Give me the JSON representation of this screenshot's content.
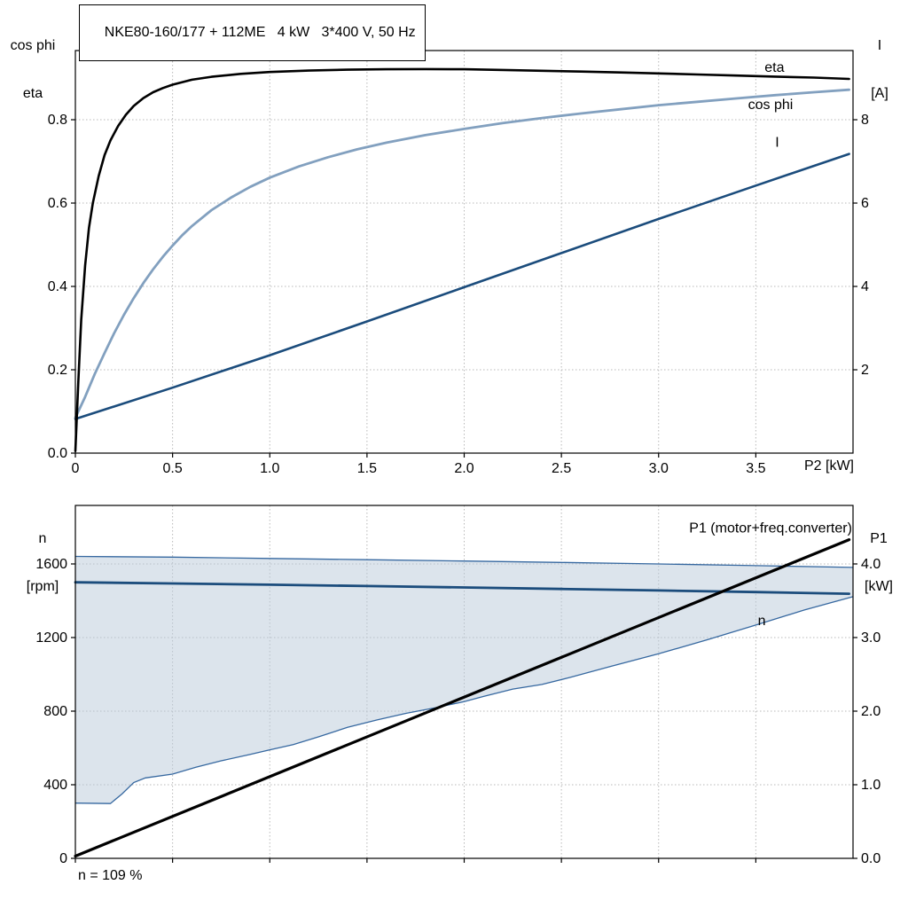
{
  "title": "NKE80-160/177 + 112ME   4 kW   3*400 V, 50 Hz",
  "labels": {
    "top_left_line1": "cos phi",
    "top_left_line2": "eta",
    "top_right_line1": "I",
    "top_right_line2": "[A]",
    "x_axis": "P2 [kW]",
    "bottom_left_line1": "n",
    "bottom_left_line2": "[rpm]",
    "bottom_right_line1": "P1",
    "bottom_right_line2": "[kW]",
    "annotation": "n = 109 %"
  },
  "colors": {
    "eta": "#000000",
    "cos_phi": "#82a0bf",
    "current": "#1b4c7c",
    "speed": "#1b4c7c",
    "p1": "#000000",
    "band_fill": "#b9cada",
    "band_edge": "#3668a0",
    "grid": "#b8b8b8"
  },
  "chart_data": [
    {
      "type": "line",
      "title": "NKE80-160/177 + 112ME   4 kW   3*400 V, 50 Hz",
      "xlabel": "P2 [kW]",
      "ylabel_left": "cos phi / eta",
      "ylabel_right": "I [A]",
      "xlim": [
        0,
        4
      ],
      "ylim_left": [
        0,
        0.966
      ],
      "ylim_right": [
        0,
        9.66
      ],
      "grid": true,
      "x_ticks": [
        {
          "v": 0,
          "label": "0"
        },
        {
          "v": 0.5,
          "label": "0.5"
        },
        {
          "v": 1,
          "label": "1.0"
        },
        {
          "v": 1.5,
          "label": "1.5"
        },
        {
          "v": 2,
          "label": "2.0"
        },
        {
          "v": 2.5,
          "label": "2.5"
        },
        {
          "v": 3,
          "label": "3.0"
        },
        {
          "v": 3.5,
          "label": "3.5"
        }
      ],
      "yl_ticks": [
        {
          "v": 0,
          "label": "0.0"
        },
        {
          "v": 0.2,
          "label": "0.2"
        },
        {
          "v": 0.4,
          "label": "0.4"
        },
        {
          "v": 0.6,
          "label": "0.6"
        },
        {
          "v": 0.8,
          "label": "0.8"
        }
      ],
      "yr_ticks": [
        {
          "v": 2,
          "label": "2"
        },
        {
          "v": 4,
          "label": "4"
        },
        {
          "v": 6,
          "label": "6"
        },
        {
          "v": 8,
          "label": "8"
        }
      ],
      "series": [
        {
          "id": "current-curve",
          "name": "I",
          "axis": "right",
          "color": "#1b4c7c",
          "width": 2.6,
          "points": [
            [
              0,
              0.82
            ],
            [
              0.5,
              1.57
            ],
            [
              1.0,
              2.35
            ],
            [
              1.5,
              3.16
            ],
            [
              2.0,
              3.98
            ],
            [
              2.5,
              4.8
            ],
            [
              3.0,
              5.62
            ],
            [
              3.5,
              6.42
            ],
            [
              3.98,
              7.18
            ]
          ],
          "label_at": {
            "x": 3.6,
            "y": 7.46,
            "anchor": "start",
            "color": "#1b4c7c"
          }
        },
        {
          "id": "cos-phi-curve",
          "name": "cos phi",
          "axis": "left",
          "color": "#82a0bf",
          "width": 2.8,
          "points": [
            [
              0,
              0.085
            ],
            [
              0.05,
              0.135
            ],
            [
              0.1,
              0.19
            ],
            [
              0.15,
              0.24
            ],
            [
              0.2,
              0.288
            ],
            [
              0.25,
              0.332
            ],
            [
              0.3,
              0.372
            ],
            [
              0.35,
              0.408
            ],
            [
              0.4,
              0.441
            ],
            [
              0.45,
              0.471
            ],
            [
              0.5,
              0.498
            ],
            [
              0.55,
              0.523
            ],
            [
              0.6,
              0.545
            ],
            [
              0.7,
              0.583
            ],
            [
              0.8,
              0.613
            ],
            [
              0.9,
              0.639
            ],
            [
              1.0,
              0.661
            ],
            [
              1.15,
              0.688
            ],
            [
              1.3,
              0.71
            ],
            [
              1.45,
              0.729
            ],
            [
              1.6,
              0.745
            ],
            [
              1.8,
              0.763
            ],
            [
              2.0,
              0.778
            ],
            [
              2.2,
              0.792
            ],
            [
              2.4,
              0.804
            ],
            [
              2.6,
              0.815
            ],
            [
              2.8,
              0.825
            ],
            [
              3.0,
              0.835
            ],
            [
              3.2,
              0.843
            ],
            [
              3.4,
              0.851
            ],
            [
              3.6,
              0.859
            ],
            [
              3.8,
              0.866
            ],
            [
              3.98,
              0.872
            ]
          ],
          "label_at": {
            "x": 3.46,
            "y": 0.836,
            "anchor": "start",
            "color": "#82a0bf"
          }
        },
        {
          "id": "eta-curve",
          "name": "eta",
          "axis": "left",
          "color": "#000000",
          "width": 2.6,
          "points": [
            [
              0,
              0.005
            ],
            [
              0.015,
              0.17
            ],
            [
              0.03,
              0.32
            ],
            [
              0.05,
              0.45
            ],
            [
              0.07,
              0.54
            ],
            [
              0.09,
              0.6
            ],
            [
              0.12,
              0.665
            ],
            [
              0.15,
              0.715
            ],
            [
              0.18,
              0.75
            ],
            [
              0.22,
              0.785
            ],
            [
              0.26,
              0.812
            ],
            [
              0.3,
              0.833
            ],
            [
              0.35,
              0.852
            ],
            [
              0.4,
              0.866
            ],
            [
              0.45,
              0.876
            ],
            [
              0.5,
              0.884
            ],
            [
              0.6,
              0.896
            ],
            [
              0.7,
              0.903
            ],
            [
              0.85,
              0.91
            ],
            [
              1.0,
              0.9145
            ],
            [
              1.2,
              0.918
            ],
            [
              1.4,
              0.92
            ],
            [
              1.6,
              0.9212
            ],
            [
              1.8,
              0.9215
            ],
            [
              2.0,
              0.921
            ],
            [
              2.2,
              0.9195
            ],
            [
              2.4,
              0.9175
            ],
            [
              2.6,
              0.9155
            ],
            [
              2.8,
              0.9135
            ],
            [
              3.0,
              0.911
            ],
            [
              3.2,
              0.9085
            ],
            [
              3.4,
              0.906
            ],
            [
              3.6,
              0.9035
            ],
            [
              3.8,
              0.901
            ],
            [
              3.98,
              0.898
            ]
          ],
          "label_at": {
            "x": 3.545,
            "y": 0.9255,
            "anchor": "start",
            "color": "#000000"
          }
        }
      ]
    },
    {
      "type": "line",
      "title": "",
      "xlabel": "",
      "ylabel_left": "n [rpm]",
      "ylabel_right": "P1 [kW]",
      "xlim": [
        0,
        4
      ],
      "ylim_left": [
        0,
        1918
      ],
      "ylim_right": [
        0,
        4.795
      ],
      "grid": true,
      "annotation": "n = 109 %",
      "x_ticks": [
        {
          "v": 0,
          "label": ""
        },
        {
          "v": 0.5,
          "label": ""
        },
        {
          "v": 1,
          "label": ""
        },
        {
          "v": 1.5,
          "label": ""
        },
        {
          "v": 2,
          "label": ""
        },
        {
          "v": 2.5,
          "label": ""
        },
        {
          "v": 3,
          "label": ""
        },
        {
          "v": 3.5,
          "label": ""
        }
      ],
      "yl_ticks": [
        {
          "v": 0,
          "label": "0"
        },
        {
          "v": 400,
          "label": "400"
        },
        {
          "v": 800,
          "label": "800"
        },
        {
          "v": 1200,
          "label": "1200"
        },
        {
          "v": 1600,
          "label": "1600"
        }
      ],
      "yr_ticks": [
        {
          "v": 0,
          "label": "0.0"
        },
        {
          "v": 1,
          "label": "1.0"
        },
        {
          "v": 2,
          "label": "2.0"
        },
        {
          "v": 3,
          "label": "3.0"
        },
        {
          "v": 4,
          "label": "4.0"
        }
      ],
      "series": [
        {
          "id": "speed-range-band",
          "name": "speed range",
          "type": "band",
          "axis": "left",
          "fill": "#b9cada",
          "edge": "#3668a0",
          "upper": [
            [
              0,
              1641
            ],
            [
              0.5,
              1637
            ],
            [
              1.0,
              1630
            ],
            [
              1.5,
              1623
            ],
            [
              2.0,
              1616
            ],
            [
              2.5,
              1608
            ],
            [
              3.0,
              1600
            ],
            [
              3.5,
              1591
            ],
            [
              4.0,
              1581
            ]
          ],
          "lower": [
            [
              0,
              300
            ],
            [
              0.18,
              298
            ],
            [
              0.24,
              350
            ],
            [
              0.3,
              412
            ],
            [
              0.36,
              437
            ],
            [
              0.5,
              458
            ],
            [
              0.62,
              495
            ],
            [
              0.75,
              530
            ],
            [
              0.9,
              565
            ],
            [
              1.0,
              590
            ],
            [
              1.12,
              618
            ],
            [
              1.25,
              660
            ],
            [
              1.4,
              712
            ],
            [
              1.55,
              752
            ],
            [
              1.7,
              788
            ],
            [
              1.85,
              818
            ],
            [
              2.0,
              852
            ],
            [
              2.1,
              880
            ],
            [
              2.25,
              920
            ],
            [
              2.4,
              945
            ],
            [
              2.55,
              985
            ],
            [
              2.75,
              1042
            ],
            [
              3.0,
              1112
            ],
            [
              3.25,
              1188
            ],
            [
              3.5,
              1268
            ],
            [
              3.75,
              1350
            ],
            [
              4.0,
              1422
            ]
          ]
        },
        {
          "id": "speed-curve",
          "name": "n",
          "axis": "left",
          "color": "#1b4c7c",
          "width": 2.8,
          "points": [
            [
              0,
              1500
            ],
            [
              0.5,
              1494
            ],
            [
              1.0,
              1487
            ],
            [
              1.5,
              1480
            ],
            [
              2.0,
              1472
            ],
            [
              2.5,
              1464
            ],
            [
              3.0,
              1456
            ],
            [
              3.5,
              1447
            ],
            [
              3.98,
              1438
            ]
          ],
          "label_at": {
            "x": 3.51,
            "y": 1292,
            "anchor": "start",
            "color": "#1b4c7c"
          }
        },
        {
          "id": "p1-curve",
          "name": "P1 (motor+freq.converter)",
          "axis": "right",
          "color": "#000000",
          "width": 3.2,
          "points": [
            [
              0,
              0.03
            ],
            [
              3.98,
              4.33
            ]
          ],
          "label_at": {
            "x": 3.995,
            "y": 4.49,
            "anchor": "end",
            "color": "#000000"
          }
        }
      ]
    }
  ]
}
